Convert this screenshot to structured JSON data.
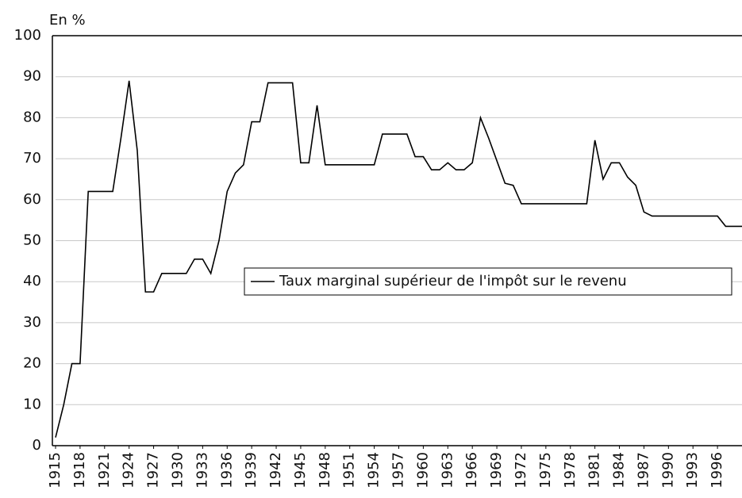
{
  "chart_data": {
    "type": "line",
    "ylabel": "En %",
    "x": [
      1915,
      1916,
      1917,
      1918,
      1919,
      1920,
      1921,
      1922,
      1923,
      1924,
      1925,
      1926,
      1927,
      1928,
      1929,
      1930,
      1931,
      1932,
      1933,
      1934,
      1935,
      1936,
      1937,
      1938,
      1939,
      1940,
      1941,
      1942,
      1943,
      1944,
      1945,
      1946,
      1947,
      1948,
      1949,
      1950,
      1951,
      1952,
      1953,
      1954,
      1955,
      1956,
      1957,
      1958,
      1959,
      1960,
      1961,
      1962,
      1963,
      1964,
      1965,
      1966,
      1967,
      1968,
      1969,
      1970,
      1971,
      1972,
      1973,
      1974,
      1975,
      1976,
      1977,
      1978,
      1979,
      1980,
      1981,
      1982,
      1983,
      1984,
      1985,
      1986,
      1987,
      1988,
      1989,
      1990,
      1991,
      1992,
      1993,
      1994,
      1995,
      1996,
      1997,
      1998,
      1999
    ],
    "series": [
      {
        "name": "Taux marginal supérieur de l'impôt sur le revenu",
        "color": "#000000",
        "values": [
          2,
          10,
          20,
          20,
          62,
          62,
          62,
          62,
          75,
          89,
          72,
          37.5,
          37.5,
          42,
          42,
          42,
          42,
          45.5,
          45.5,
          42,
          50,
          62,
          66.5,
          68.5,
          79,
          79,
          88.5,
          88.5,
          88.5,
          88.5,
          69,
          69,
          83,
          68.5,
          68.5,
          68.5,
          68.5,
          68.5,
          68.5,
          68.5,
          76,
          76,
          76,
          76,
          70.5,
          70.5,
          67.3,
          67.3,
          69,
          67.3,
          67.3,
          69,
          80,
          75,
          69.5,
          64,
          63.5,
          59,
          59,
          59,
          59,
          59,
          59,
          59,
          59,
          59,
          74.5,
          65,
          69,
          69,
          65.5,
          63.5,
          57,
          56,
          56,
          56,
          56,
          56,
          56,
          56,
          56,
          56,
          53.5,
          53.5,
          53.5
        ]
      }
    ],
    "xlim": [
      1915,
      1999
    ],
    "xticks": [
      1915,
      1918,
      1921,
      1924,
      1927,
      1930,
      1933,
      1936,
      1939,
      1942,
      1945,
      1948,
      1951,
      1954,
      1957,
      1960,
      1963,
      1966,
      1969,
      1972,
      1975,
      1978,
      1981,
      1984,
      1987,
      1990,
      1993,
      1996
    ],
    "ylim": [
      0,
      100
    ],
    "yticks": [
      0,
      10,
      20,
      30,
      40,
      50,
      60,
      70,
      80,
      90,
      100
    ],
    "grid": true,
    "legend": "center"
  }
}
